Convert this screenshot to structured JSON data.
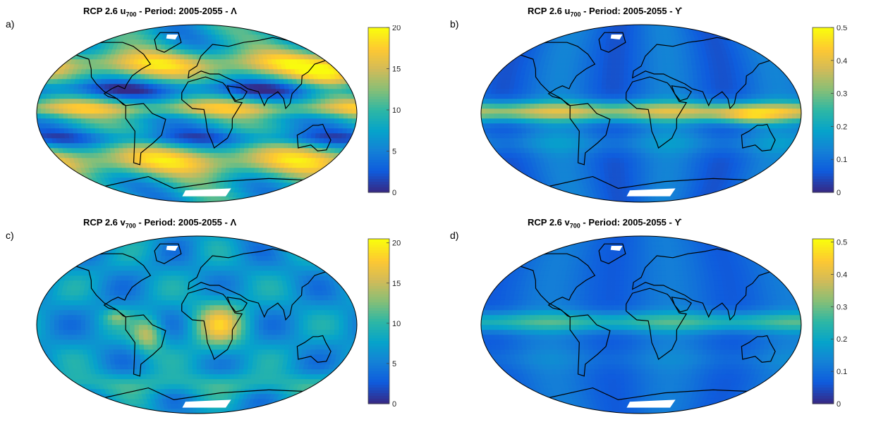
{
  "chart_data": [
    {
      "type": "heatmap",
      "panel_label": "a)",
      "title_parts": {
        "prefix": "RCP 2.6  u",
        "sub": "700",
        "suffix": " - Period: 2005-2055 - Λ"
      },
      "colorbar": {
        "ticks": [
          "0",
          "5",
          "10",
          "15",
          "20"
        ],
        "range": [
          0,
          20
        ]
      },
      "pattern": "u_lambda"
    },
    {
      "type": "heatmap",
      "panel_label": "b)",
      "title_parts": {
        "prefix": "RCP 2.6  u",
        "sub": "700",
        "suffix": " - Period: 2005-2055 - ϒ"
      },
      "colorbar": {
        "ticks": [
          "0",
          "0.1",
          "0.2",
          "0.3",
          "0.4",
          "0.5"
        ],
        "range": [
          0,
          0.5
        ]
      },
      "pattern": "u_upsilon"
    },
    {
      "type": "heatmap",
      "panel_label": "c)",
      "title_parts": {
        "prefix": "RCP 2.6  v",
        "sub": "700",
        "suffix": " - Period: 2005-2055 - Λ"
      },
      "colorbar": {
        "ticks": [
          "0",
          "5",
          "10",
          "15",
          "20"
        ],
        "range": [
          0,
          20.5
        ]
      },
      "pattern": "v_lambda"
    },
    {
      "type": "heatmap",
      "panel_label": "d)",
      "title_parts": {
        "prefix": "RCP 2.6  v",
        "sub": "700",
        "suffix": " - Period: 2005-2055 - ϒ"
      },
      "colorbar": {
        "ticks": [
          "0",
          "0.1",
          "0.2",
          "0.3",
          "0.4",
          "0.5"
        ],
        "range": [
          0,
          0.51
        ]
      },
      "pattern": "v_upsilon"
    }
  ],
  "colormap": [
    "#352a87",
    "#0f5cdd",
    "#1481d6",
    "#06a4ca",
    "#2eb7a4",
    "#87bf77",
    "#d1bb59",
    "#fec832",
    "#f9fb0e"
  ]
}
